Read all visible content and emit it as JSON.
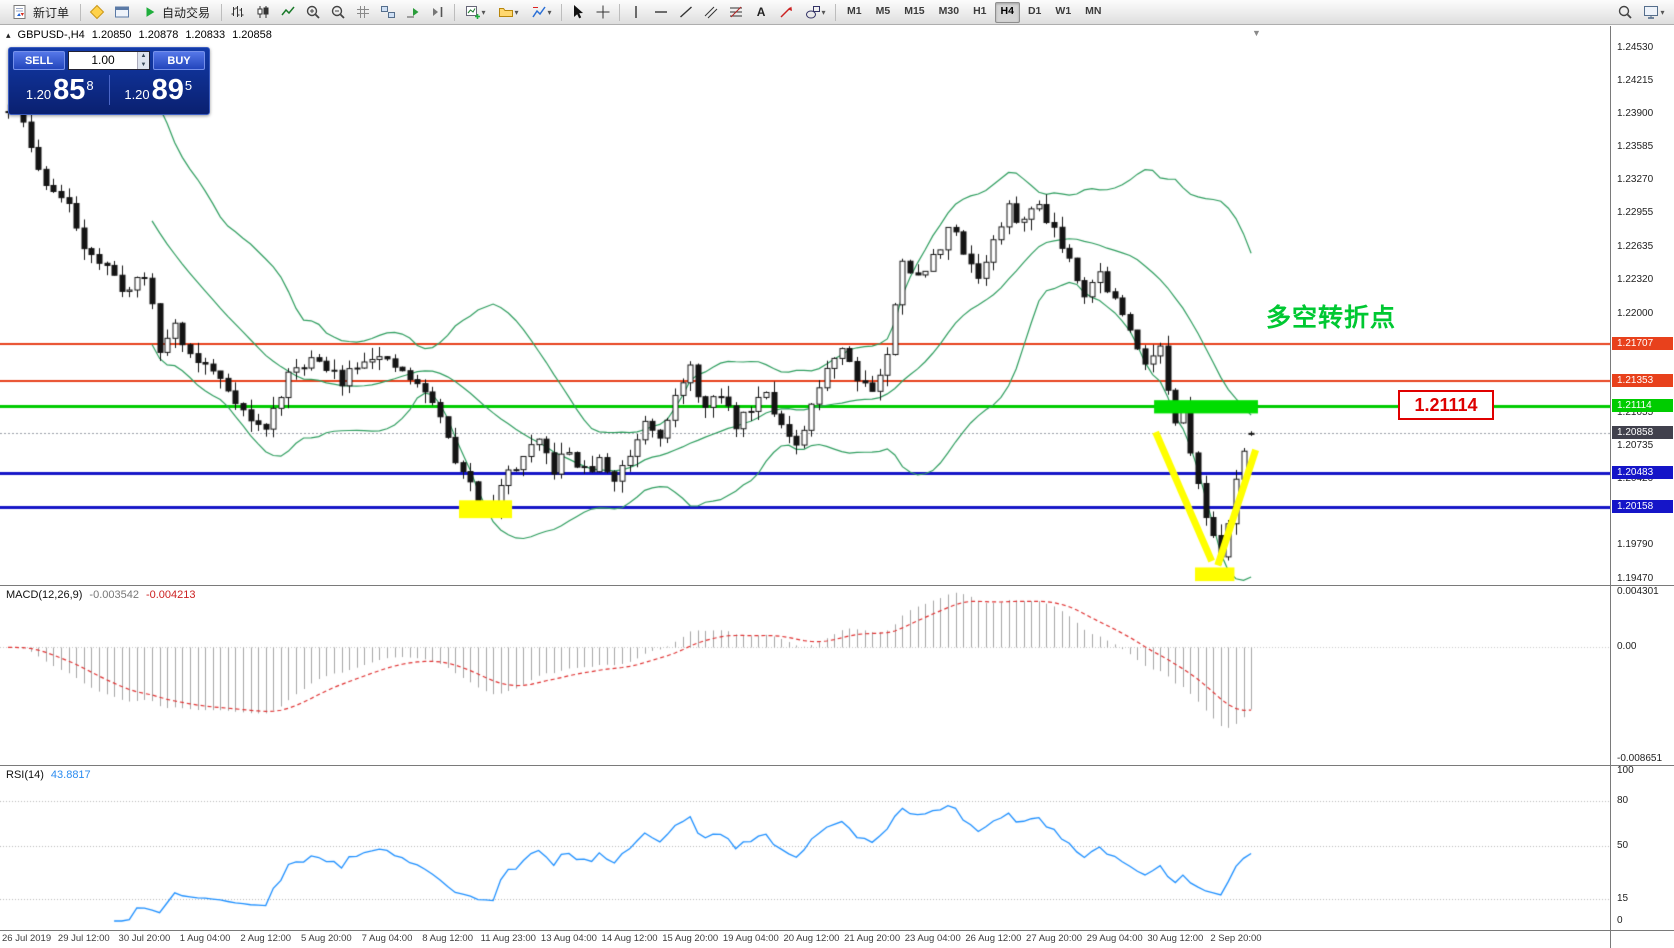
{
  "toolbar": {
    "new_order": "新订单",
    "autotrade": "自动交易",
    "timeframes": [
      "M1",
      "M5",
      "M15",
      "M30",
      "H1",
      "H4",
      "D1",
      "W1",
      "MN"
    ],
    "active_timeframe": "H4",
    "text_tool": "A",
    "dropdown_glyph": "▾",
    "toggle_glyph": "▴",
    "shift_glyph": "▼"
  },
  "symbol_header": {
    "symbol": "GBPUSD-,H4",
    "open": "1.20850",
    "high": "1.20878",
    "low": "1.20833",
    "close": "1.20858"
  },
  "trade_panel": {
    "sell": "SELL",
    "buy": "BUY",
    "volume": "1.00",
    "sell_small": "1.20",
    "sell_big": "85",
    "sell_sup": "8",
    "buy_small": "1.20",
    "buy_big": "89",
    "buy_sup": "5"
  },
  "annotations": {
    "turning_point": "多空转折点",
    "turning_point_color": "#00c832",
    "callout": "1.21114",
    "callout_color": "#e00000"
  },
  "chart_data": {
    "type": "candlestick",
    "symbol": "GBPUSD",
    "timeframe": "H4",
    "bar_count": 165,
    "seed": 11,
    "price_range": {
      "max": 1.2453,
      "min": 1.1947
    },
    "anchors": [
      [
        0,
        1.2392
      ],
      [
        2,
        1.2382
      ],
      [
        4,
        1.2335
      ],
      [
        6,
        1.2318
      ],
      [
        8,
        1.23
      ],
      [
        10,
        1.2268
      ],
      [
        12,
        1.225
      ],
      [
        14,
        1.2232
      ],
      [
        16,
        1.2222
      ],
      [
        18,
        1.224
      ],
      [
        20,
        1.2165
      ],
      [
        22,
        1.219
      ],
      [
        24,
        1.216
      ],
      [
        26,
        1.215
      ],
      [
        28,
        1.2138
      ],
      [
        30,
        1.212
      ],
      [
        32,
        1.2096
      ],
      [
        34,
        1.209
      ],
      [
        36,
        1.2125
      ],
      [
        38,
        1.215
      ],
      [
        40,
        1.2158
      ],
      [
        42,
        1.2145
      ],
      [
        44,
        1.2138
      ],
      [
        46,
        1.2155
      ],
      [
        48,
        1.2162
      ],
      [
        50,
        1.215
      ],
      [
        52,
        1.2145
      ],
      [
        54,
        1.213
      ],
      [
        56,
        1.2118
      ],
      [
        58,
        1.208
      ],
      [
        60,
        1.2045
      ],
      [
        62,
        1.2025
      ],
      [
        64,
        1.2018
      ],
      [
        66,
        1.2048
      ],
      [
        68,
        1.2062
      ],
      [
        70,
        1.2075
      ],
      [
        72,
        1.2052
      ],
      [
        74,
        1.2068
      ],
      [
        76,
        1.2048
      ],
      [
        78,
        1.2058
      ],
      [
        80,
        1.2042
      ],
      [
        82,
        1.2066
      ],
      [
        84,
        1.21
      ],
      [
        86,
        1.2088
      ],
      [
        88,
        1.2118
      ],
      [
        90,
        1.2145
      ],
      [
        92,
        1.2108
      ],
      [
        94,
        1.2122
      ],
      [
        96,
        1.2094
      ],
      [
        98,
        1.2112
      ],
      [
        100,
        1.213
      ],
      [
        102,
        1.2092
      ],
      [
        104,
        1.2068
      ],
      [
        106,
        1.2108
      ],
      [
        108,
        1.2152
      ],
      [
        110,
        1.2168
      ],
      [
        112,
        1.2142
      ],
      [
        114,
        1.2128
      ],
      [
        116,
        1.2158
      ],
      [
        118,
        1.2255
      ],
      [
        120,
        1.2232
      ],
      [
        122,
        1.2252
      ],
      [
        124,
        1.2282
      ],
      [
        126,
        1.2262
      ],
      [
        128,
        1.2235
      ],
      [
        130,
        1.2268
      ],
      [
        132,
        1.2298
      ],
      [
        134,
        1.2288
      ],
      [
        136,
        1.2305
      ],
      [
        138,
        1.2282
      ],
      [
        140,
        1.2252
      ],
      [
        142,
        1.2222
      ],
      [
        144,
        1.2238
      ],
      [
        146,
        1.2212
      ],
      [
        148,
        1.2182
      ],
      [
        150,
        1.2158
      ],
      [
        152,
        1.2166
      ],
      [
        153,
        1.2128
      ],
      [
        154,
        1.2092
      ],
      [
        155,
        1.2105
      ],
      [
        156,
        1.2062
      ],
      [
        157,
        1.2045
      ],
      [
        158,
        1.2012
      ],
      [
        159,
        1.1986
      ],
      [
        160,
        1.1962
      ],
      [
        161,
        1.2005
      ],
      [
        162,
        1.2042
      ],
      [
        163,
        1.2075
      ],
      [
        164,
        1.2086
      ]
    ],
    "last_bar": {
      "open": 1.2085,
      "high": 1.20878,
      "low": 1.20833,
      "close": 1.20858
    },
    "overlays": {
      "bollinger": {
        "period": 20,
        "deviation": 2,
        "color": "#2f9e5f"
      }
    },
    "hlines": [
      {
        "price": 1.21707,
        "color": "#e8411c",
        "width": 2,
        "label": "1.21707"
      },
      {
        "price": 1.21353,
        "color": "#e8411c",
        "width": 2,
        "label": "1.21353"
      },
      {
        "price": 1.21114,
        "color": "#00cc00",
        "width": 3,
        "label": "1.21114"
      },
      {
        "price": 1.20483,
        "color": "#1515c8",
        "width": 3,
        "label": "1.20483"
      },
      {
        "price": 1.20158,
        "color": "#1515c8",
        "width": 3,
        "label": "1.20158"
      }
    ],
    "bid": {
      "price": 1.20858,
      "label": "1.20858",
      "tag_color": "#41414d"
    },
    "shapes": {
      "rects": [
        {
          "b1": 59.5,
          "b2": 66.5,
          "p1": 1.2022,
          "p2": 1.2005,
          "color": "#ffff00"
        },
        {
          "b1": 156.6,
          "b2": 161.8,
          "p1": 1.1958,
          "p2": 1.1945,
          "color": "#ffff00"
        },
        {
          "b1": 151.2,
          "b2": 164.9,
          "p1": 1.21174,
          "p2": 1.21048,
          "color": "#00dd00"
        }
      ],
      "lines": [
        {
          "b1": 151.4,
          "p1": 1.2087,
          "b2": 158.8,
          "p2": 1.1964,
          "color": "#ffff00",
          "width": 7
        },
        {
          "b1": 159.6,
          "p1": 1.196,
          "b2": 164.6,
          "p2": 1.207,
          "color": "#ffff00",
          "width": 7
        }
      ]
    },
    "price_ticks": [
      "1.24530",
      "1.24215",
      "1.23900",
      "1.23585",
      "1.23270",
      "1.22955",
      "1.22635",
      "1.22320",
      "1.22000",
      "1.21055",
      "1.20735",
      "1.20420",
      "1.19790",
      "1.19470"
    ],
    "time_labels": [
      "26 Jul 2019",
      "29 Jul 12:00",
      "30 Jul 20:00",
      "1 Aug 04:00",
      "2 Aug 12:00",
      "5 Aug 20:00",
      "7 Aug 04:00",
      "8 Aug 12:00",
      "11 Aug 23:00",
      "13 Aug 04:00",
      "14 Aug 12:00",
      "15 Aug 20:00",
      "19 Aug 04:00",
      "20 Aug 12:00",
      "21 Aug 20:00",
      "23 Aug 04:00",
      "26 Aug 12:00",
      "27 Aug 20:00",
      "29 Aug 04:00",
      "30 Aug 12:00",
      "2 Sep 20:00"
    ]
  },
  "macd": {
    "name": "MACD(12,26,9)",
    "value_main": "-0.003542",
    "value_signal": "-0.004213",
    "scale_max": "0.004301",
    "scale_zero": "0.00",
    "scale_min": "-0.008651",
    "histogram_color": "#a6a6a6",
    "signal_color": "#e03232"
  },
  "rsi": {
    "name": "RSI(14)",
    "value": "43.8817",
    "scale": [
      "100",
      "80",
      "50",
      "15",
      "0"
    ],
    "levels": [
      80,
      50,
      15
    ],
    "line_color": "#1e90ff"
  }
}
